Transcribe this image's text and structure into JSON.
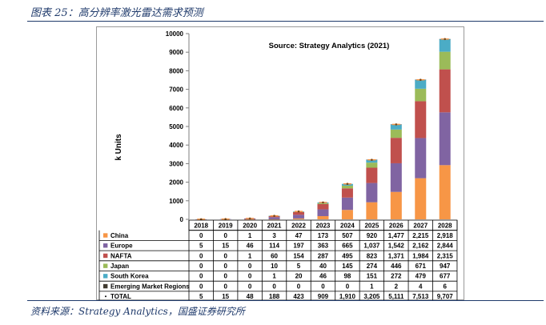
{
  "figure_caption": "图表 25：高分辨率激光雷达需求预测",
  "figure_source": "资料来源：Strategy Analytics，国盛证券研究所",
  "chart_data": {
    "type": "bar",
    "stacked": true,
    "title": "Source: Strategy Analytics (2021)",
    "ylabel": "k Units",
    "xlabel": "",
    "ylim": [
      0,
      10000
    ],
    "yticks": [
      0,
      1000,
      2000,
      3000,
      4000,
      5000,
      6000,
      7000,
      8000,
      9000,
      10000
    ],
    "grid": false,
    "legend": "table-left",
    "categories": [
      "2018",
      "2019",
      "2020",
      "2021",
      "2022",
      "2023",
      "2024",
      "2025",
      "2026",
      "2027",
      "2028"
    ],
    "series": [
      {
        "name": "China",
        "color": "#f79646",
        "values": [
          0,
          0,
          1,
          3,
          47,
          173,
          507,
          920,
          1477,
          2215,
          2918
        ],
        "labels": [
          "0",
          "0",
          "1",
          "3",
          "47",
          "173",
          "507",
          "920",
          "1,477",
          "2,215",
          "2,918"
        ]
      },
      {
        "name": "Europe",
        "color": "#8064a2",
        "values": [
          5,
          15,
          46,
          114,
          197,
          363,
          665,
          1037,
          1542,
          2162,
          2844
        ],
        "labels": [
          "5",
          "15",
          "46",
          "114",
          "197",
          "363",
          "665",
          "1,037",
          "1,542",
          "2,162",
          "2,844"
        ]
      },
      {
        "name": "NAFTA",
        "color": "#c0504d",
        "values": [
          0,
          0,
          1,
          60,
          154,
          287,
          495,
          823,
          1371,
          1984,
          2315
        ],
        "labels": [
          "0",
          "0",
          "1",
          "60",
          "154",
          "287",
          "495",
          "823",
          "1,371",
          "1,984",
          "2,315"
        ]
      },
      {
        "name": "Japan",
        "color": "#9bbb59",
        "values": [
          0,
          0,
          0,
          10,
          5,
          40,
          145,
          274,
          446,
          671,
          947
        ],
        "labels": [
          "0",
          "0",
          "0",
          "10",
          "5",
          "40",
          "145",
          "274",
          "446",
          "671",
          "947"
        ]
      },
      {
        "name": "South Korea",
        "color": "#4bacc6",
        "values": [
          0,
          0,
          0,
          1,
          20,
          46,
          98,
          151,
          272,
          479,
          677
        ],
        "labels": [
          "0",
          "0",
          "0",
          "1",
          "20",
          "46",
          "98",
          "151",
          "272",
          "479",
          "677"
        ]
      },
      {
        "name": "Emerging Market Regions",
        "color": "#403a30",
        "values": [
          0,
          0,
          0,
          0,
          0,
          0,
          0,
          1,
          2,
          4,
          6
        ],
        "labels": [
          "0",
          "0",
          "0",
          "0",
          "0",
          "0",
          "0",
          "1",
          "2",
          "4",
          "6"
        ]
      }
    ],
    "total": {
      "name": "TOTAL",
      "color": "#f79646",
      "values": [
        5,
        15,
        48,
        188,
        423,
        909,
        1910,
        3205,
        5111,
        7513,
        9707
      ],
      "labels": [
        "5",
        "15",
        "48",
        "188",
        "423",
        "909",
        "1,910",
        "3,205",
        "5,111",
        "7,513",
        "9,707"
      ]
    }
  }
}
